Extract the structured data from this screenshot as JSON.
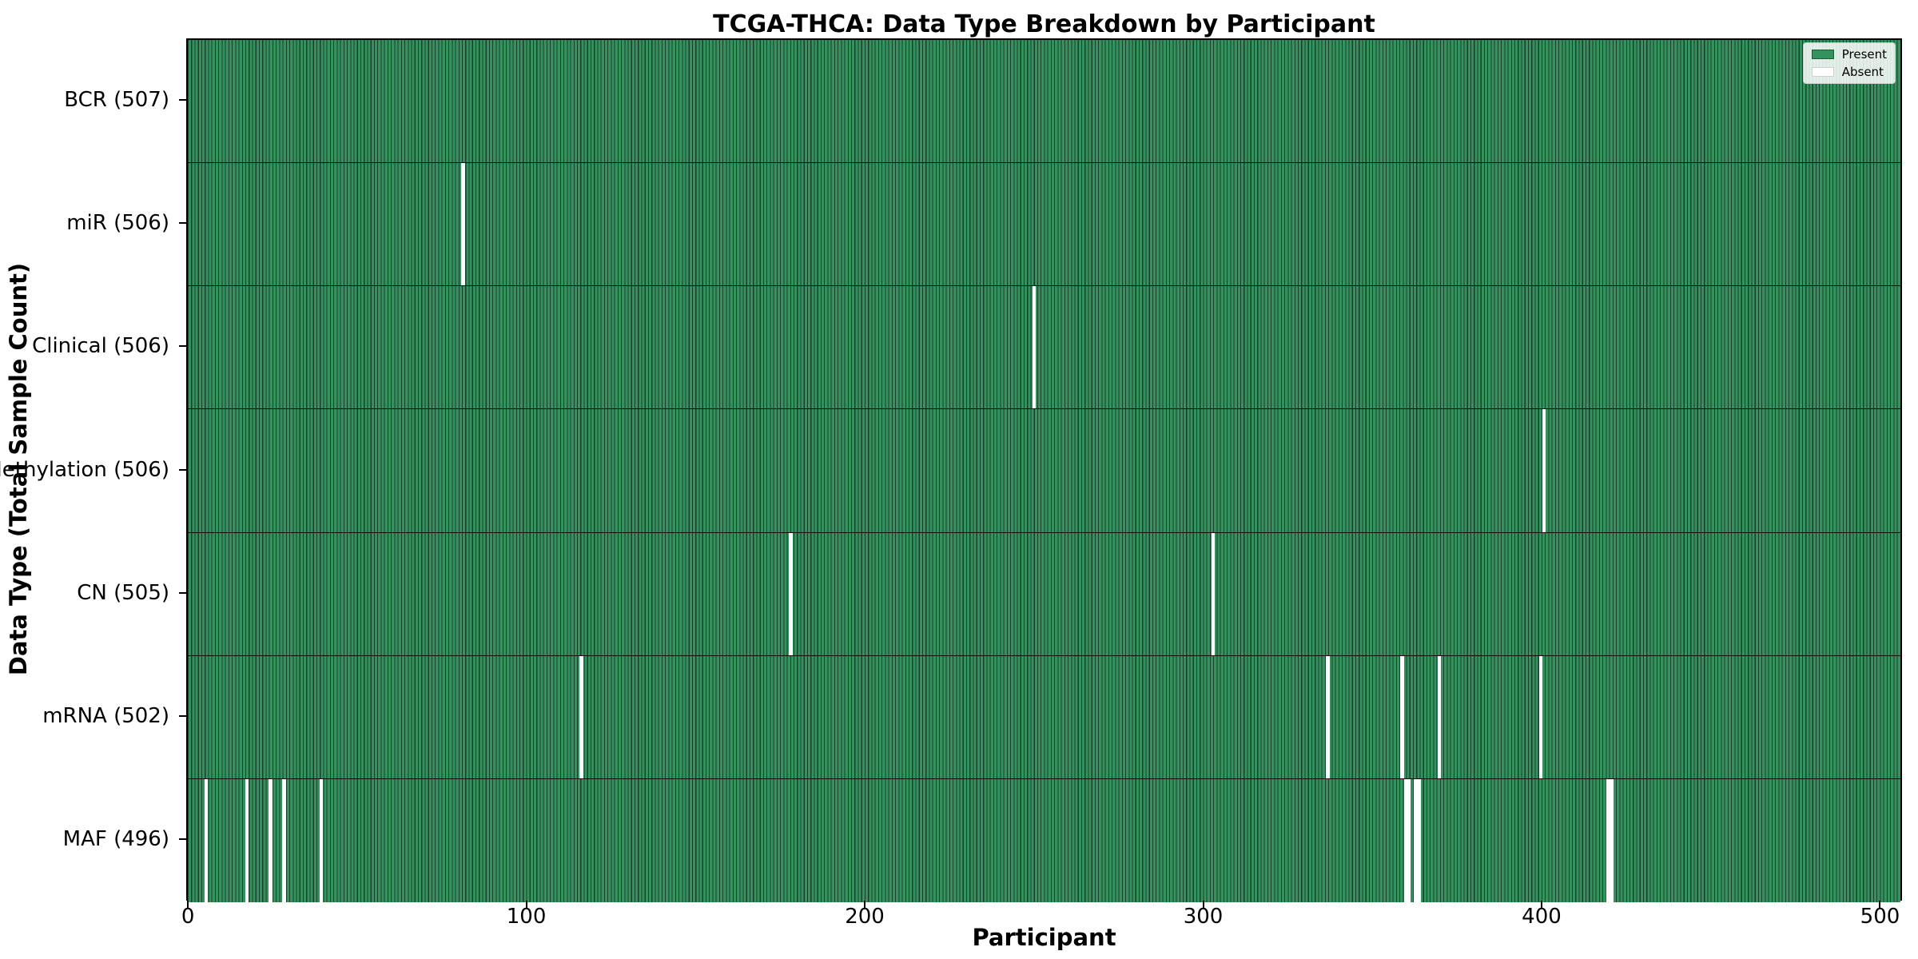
{
  "title": "TCGA-THCA: Data Type Breakdown by Participant",
  "xlabel": "Participant",
  "ylabel": "Data Type (Total Sample Count)",
  "legend": {
    "present_label": "Present",
    "absent_label": "Absent"
  },
  "colors": {
    "present_fill": "#35925f",
    "bar_edge": "#16402a",
    "absent_fill": "#ffffff",
    "axis": "#000000",
    "legend_bg": "#ffffff",
    "legend_border": "#cccccc"
  },
  "chart_data": {
    "type": "heatmap",
    "title": "TCGA-THCA: Data Type Breakdown by Participant",
    "xlabel": "Participant",
    "ylabel": "Data Type (Total Sample Count)",
    "x_ticks": [
      0,
      100,
      200,
      300,
      400,
      500
    ],
    "xlim": [
      -0.5,
      506.5
    ],
    "n_participants": 507,
    "grid": false,
    "legend_entries": [
      "Present",
      "Absent"
    ],
    "legend_position": "upper-right",
    "rows": [
      {
        "label": "BCR (507)",
        "data_type": "BCR",
        "present_count": 507,
        "absent_participants": []
      },
      {
        "label": "miR (506)",
        "data_type": "miR",
        "present_count": 506,
        "absent_participants": [
          81
        ]
      },
      {
        "label": "Clinical (506)",
        "data_type": "Clinical",
        "present_count": 506,
        "absent_participants": [
          250
        ]
      },
      {
        "label": "Methylation (506)",
        "data_type": "Methylation",
        "present_count": 506,
        "absent_participants": [
          401
        ]
      },
      {
        "label": "CN (505)",
        "data_type": "CN",
        "present_count": 505,
        "absent_participants": [
          178,
          303
        ]
      },
      {
        "label": "mRNA (502)",
        "data_type": "mRNA",
        "present_count": 502,
        "absent_participants": [
          116,
          337,
          359,
          370,
          400
        ]
      },
      {
        "label": "MAF (496)",
        "data_type": "MAF",
        "present_count": 496,
        "absent_participants": [
          5,
          17,
          24,
          28,
          39,
          360,
          361,
          363,
          364,
          420,
          421
        ]
      }
    ]
  }
}
